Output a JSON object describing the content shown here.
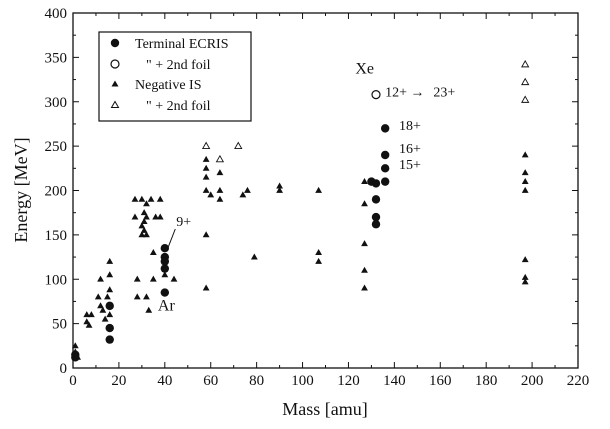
{
  "chart_data": {
    "type": "scatter",
    "title": "",
    "xlabel": "Mass [amu]",
    "ylabel": "Energy [MeV]",
    "xlim": [
      0,
      220
    ],
    "ylim": [
      0,
      400
    ],
    "xticks": [
      "0",
      "20",
      "40",
      "60",
      "80",
      "100",
      "120",
      "140",
      "160",
      "180",
      "200",
      "220"
    ],
    "yticks": [
      "0",
      "50",
      "100",
      "150",
      "200",
      "250",
      "300",
      "350",
      "400"
    ],
    "grid": false,
    "legend_position": "top-left",
    "series": [
      {
        "name": "Terminal ECRIS",
        "marker": "filled-circle",
        "points": [
          [
            1,
            15
          ],
          [
            1,
            12
          ],
          [
            16,
            70
          ],
          [
            16,
            45
          ],
          [
            16,
            32
          ],
          [
            40,
            135
          ],
          [
            40,
            125
          ],
          [
            40,
            120
          ],
          [
            40,
            112
          ],
          [
            40,
            85
          ],
          [
            130,
            210
          ],
          [
            132,
            208
          ],
          [
            132,
            190
          ],
          [
            132,
            170
          ],
          [
            132,
            162
          ],
          [
            136,
            270
          ],
          [
            136,
            240
          ],
          [
            136,
            225
          ],
          [
            136,
            210
          ]
        ]
      },
      {
        "name": "\" + 2nd foil",
        "marker": "open-circle",
        "points": [
          [
            132,
            308
          ]
        ]
      },
      {
        "name": "Negative IS",
        "marker": "filled-triangle",
        "points": [
          [
            1,
            25
          ],
          [
            1,
            18
          ],
          [
            2,
            12
          ],
          [
            6,
            60
          ],
          [
            6,
            52
          ],
          [
            7,
            48
          ],
          [
            8,
            60
          ],
          [
            11,
            80
          ],
          [
            12,
            100
          ],
          [
            12,
            70
          ],
          [
            13,
            65
          ],
          [
            14,
            55
          ],
          [
            15,
            80
          ],
          [
            16,
            105
          ],
          [
            16,
            120
          ],
          [
            16,
            88
          ],
          [
            16,
            60
          ],
          [
            27,
            190
          ],
          [
            27,
            170
          ],
          [
            28,
            100
          ],
          [
            28,
            80
          ],
          [
            30,
            190
          ],
          [
            30,
            160
          ],
          [
            30,
            150
          ],
          [
            31,
            175
          ],
          [
            31,
            165
          ],
          [
            31,
            155
          ],
          [
            32,
            185
          ],
          [
            32,
            170
          ],
          [
            32,
            150
          ],
          [
            32,
            80
          ],
          [
            33,
            65
          ],
          [
            34,
            190
          ],
          [
            35,
            130
          ],
          [
            35,
            100
          ],
          [
            36,
            170
          ],
          [
            38,
            190
          ],
          [
            38,
            170
          ],
          [
            40,
            125
          ],
          [
            40,
            115
          ],
          [
            40,
            105
          ],
          [
            44,
            100
          ],
          [
            58,
            235
          ],
          [
            58,
            225
          ],
          [
            58,
            215
          ],
          [
            58,
            200
          ],
          [
            58,
            150
          ],
          [
            58,
            90
          ],
          [
            60,
            195
          ],
          [
            64,
            220
          ],
          [
            64,
            200
          ],
          [
            64,
            190
          ],
          [
            74,
            195
          ],
          [
            76,
            200
          ],
          [
            79,
            125
          ],
          [
            90,
            205
          ],
          [
            90,
            200
          ],
          [
            107,
            200
          ],
          [
            107,
            130
          ],
          [
            107,
            120
          ],
          [
            127,
            210
          ],
          [
            127,
            185
          ],
          [
            127,
            140
          ],
          [
            127,
            110
          ],
          [
            127,
            90
          ],
          [
            197,
            240
          ],
          [
            197,
            220
          ],
          [
            197,
            210
          ],
          [
            197,
            200
          ],
          [
            197,
            122
          ],
          [
            197,
            102
          ],
          [
            197,
            97
          ]
        ]
      },
      {
        "name": "\" + 2nd foil",
        "marker": "open-triangle",
        "points": [
          [
            58,
            250
          ],
          [
            64,
            235
          ],
          [
            72,
            250
          ],
          [
            197,
            342
          ],
          [
            197,
            322
          ],
          [
            197,
            302
          ]
        ]
      }
    ],
    "annotations": [
      {
        "text": "9+",
        "x": 45,
        "y": 160,
        "arrow_to": [
          41,
          133
        ]
      },
      {
        "text": "Ar",
        "x": 37,
        "y": 65
      },
      {
        "text": "Xe",
        "x": 123,
        "y": 332
      },
      {
        "text": "12+",
        "x": 136,
        "y": 306
      },
      {
        "text": "→",
        "x": 147,
        "y": 306
      },
      {
        "text": "23+",
        "x": 157,
        "y": 306
      },
      {
        "text": "18+",
        "x": 142,
        "y": 268
      },
      {
        "text": "16+",
        "x": 142,
        "y": 242
      },
      {
        "text": "15+",
        "x": 142,
        "y": 224
      }
    ]
  }
}
